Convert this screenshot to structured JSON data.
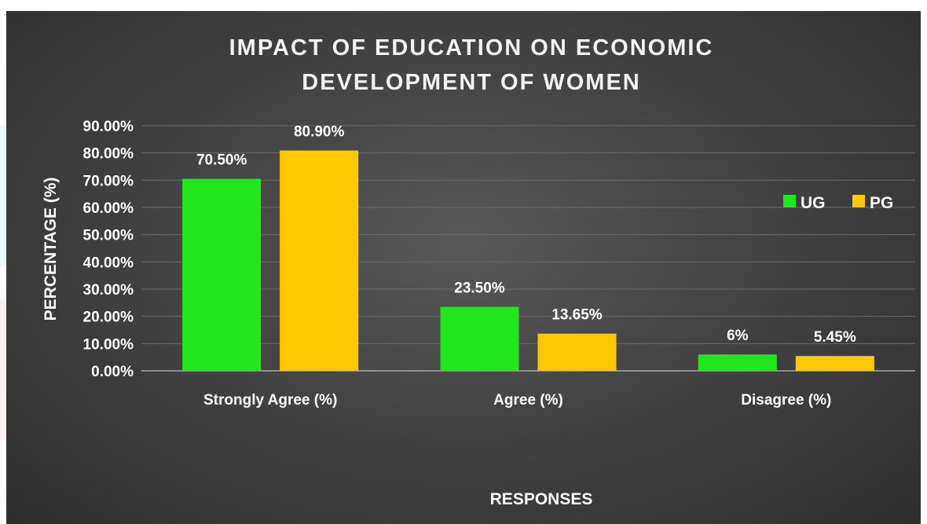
{
  "chart_data": {
    "type": "bar",
    "title_lines": [
      "IMPACT OF EDUCATION ON ECONOMIC",
      "DEVELOPMENT OF WOMEN"
    ],
    "xlabel": "RESPONSES",
    "ylabel": "PERCENTAGE (%)",
    "categories": [
      "Strongly Agree (%)",
      "Agree (%)",
      "Disagree (%)"
    ],
    "series": [
      {
        "name": "UG",
        "values": [
          70.5,
          23.5,
          6
        ],
        "labels": [
          "70.50%",
          "23.50%",
          "6%"
        ],
        "color": "#22e61e"
      },
      {
        "name": "PG",
        "values": [
          80.9,
          13.65,
          5.45
        ],
        "labels": [
          "80.90%",
          "13.65%",
          "5.45%"
        ],
        "color": "#ffc800"
      }
    ],
    "ylim": [
      0,
      90
    ],
    "yticks": [
      "0.00%",
      "10.00%",
      "20.00%",
      "30.00%",
      "40.00%",
      "50.00%",
      "60.00%",
      "70.00%",
      "80.00%",
      "90.00%"
    ],
    "grid": true,
    "legend_position": "right",
    "background": "#404040"
  }
}
